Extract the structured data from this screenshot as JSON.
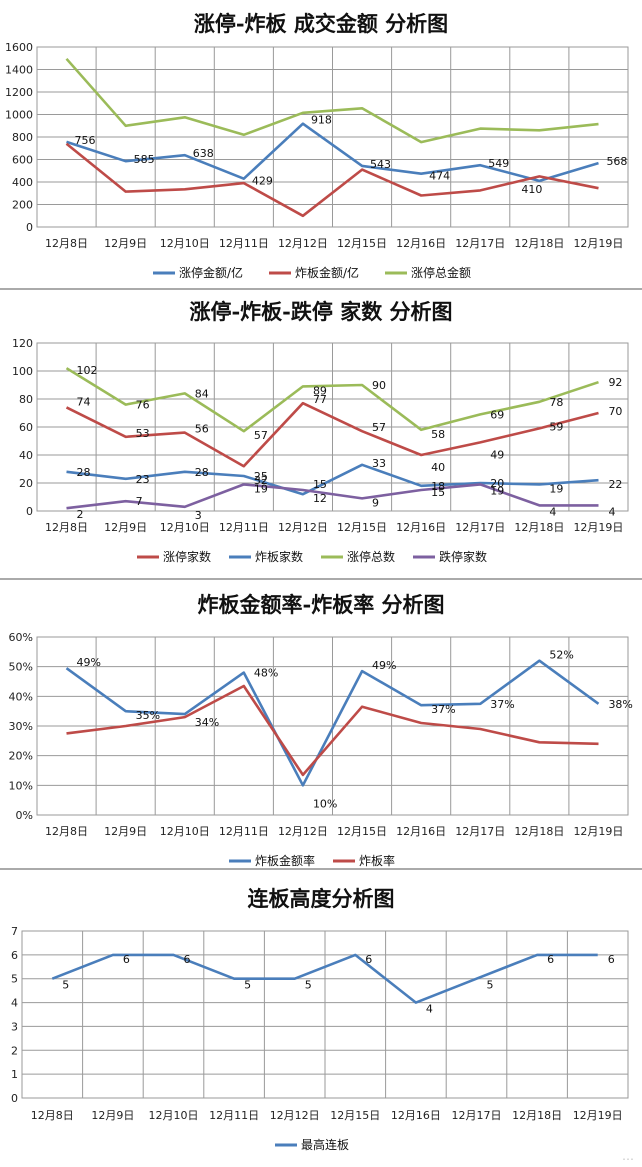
{
  "watermark": "…",
  "chart_data": [
    {
      "type": "line",
      "title": "涨停-炸板 成交金额 分析图",
      "categories": [
        "12月8日",
        "12月9日",
        "12月10日",
        "12月11日",
        "12月12日",
        "12月15日",
        "12月16日",
        "12月17日",
        "12月18日",
        "12月19日"
      ],
      "ylim": [
        0,
        1600
      ],
      "yticks": [
        0,
        200,
        400,
        600,
        800,
        1000,
        1200,
        1400,
        1600
      ],
      "ytick_labels": [
        "0",
        "200",
        "400",
        "600",
        "800",
        "1000",
        "1200",
        "1400",
        "1600"
      ],
      "grid": true,
      "legend": "bottom",
      "series": [
        {
          "name": "涨停金额/亿",
          "color": "#4a7ebb",
          "values": [
            756,
            585,
            638,
            429,
            918,
            543,
            474,
            549,
            410,
            568
          ],
          "labels": [
            "756",
            "585",
            "638",
            "429",
            "918",
            "543",
            "474",
            "549",
            "410",
            "568"
          ]
        },
        {
          "name": "炸板金额/亿",
          "color": "#be4b48",
          "values": [
            740,
            315,
            335,
            390,
            100,
            510,
            280,
            325,
            450,
            345
          ],
          "labels": []
        },
        {
          "name": "涨停总金额",
          "color": "#9bbb59",
          "values": [
            1495,
            900,
            975,
            820,
            1015,
            1055,
            755,
            875,
            860,
            915
          ],
          "labels": []
        }
      ]
    },
    {
      "type": "line",
      "title": "涨停-炸板-跌停 家数 分析图",
      "categories": [
        "12月8日",
        "12月9日",
        "12月10日",
        "12月11日",
        "12月12日",
        "12月15日",
        "12月16日",
        "12月17日",
        "12月18日",
        "12月19日"
      ],
      "ylim": [
        0,
        120
      ],
      "yticks": [
        0,
        20,
        40,
        60,
        80,
        100,
        120
      ],
      "ytick_labels": [
        "0",
        "20",
        "40",
        "60",
        "80",
        "100",
        "120"
      ],
      "grid": true,
      "legend": "bottom",
      "series": [
        {
          "name": "涨停家数",
          "color": "#be4b48",
          "values": [
            74,
            53,
            56,
            32,
            77,
            57,
            40,
            49,
            59,
            70
          ],
          "labels": [
            "74",
            "53",
            "56",
            "32",
            "77",
            "57",
            "40",
            "49",
            "59",
            "70"
          ]
        },
        {
          "name": "炸板家数",
          "color": "#4a7ebb",
          "values": [
            28,
            23,
            28,
            25,
            12,
            33,
            18,
            20,
            19,
            22
          ],
          "labels": [
            "28",
            "23",
            "28",
            "25",
            "12",
            "33",
            "18",
            "20",
            "19",
            "22"
          ]
        },
        {
          "name": "涨停总数",
          "color": "#9bbb59",
          "values": [
            102,
            76,
            84,
            57,
            89,
            90,
            58,
            69,
            78,
            92
          ],
          "labels": [
            "102",
            "76",
            "84",
            "57",
            "89",
            "90",
            "58",
            "69",
            "78",
            "92"
          ]
        },
        {
          "name": "跌停家数",
          "color": "#7d60a0",
          "values": [
            2,
            7,
            3,
            19,
            15,
            9,
            15,
            19,
            4,
            4
          ],
          "labels": [
            "2",
            "7",
            "3",
            "19",
            "15",
            "9",
            "15",
            "19",
            "4",
            "4"
          ]
        }
      ]
    },
    {
      "type": "line",
      "title": "炸板金额率-炸板率 分析图",
      "categories": [
        "12月8日",
        "12月9日",
        "12月10日",
        "12月11日",
        "12月12日",
        "12月15日",
        "12月16日",
        "12月17日",
        "12月18日",
        "12月19日"
      ],
      "ylim": [
        0,
        60
      ],
      "yticks": [
        0,
        10,
        20,
        30,
        40,
        50,
        60
      ],
      "ytick_labels": [
        "0%",
        "10%",
        "20%",
        "30%",
        "40%",
        "50%",
        "60%"
      ],
      "grid": true,
      "legend": "bottom",
      "series": [
        {
          "name": "炸板金额率",
          "color": "#4a7ebb",
          "values": [
            49.5,
            35,
            34,
            48,
            10,
            48.5,
            37,
            37.5,
            52,
            37.5
          ],
          "labels": [
            "49%",
            "35%",
            "34%",
            "48%",
            "10%",
            "49%",
            "37%",
            "37%",
            "52%",
            "38%"
          ]
        },
        {
          "name": "炸板率",
          "color": "#be4b48",
          "values": [
            27.5,
            30,
            33,
            43.5,
            13.5,
            36.5,
            31,
            29,
            24.5,
            24
          ],
          "labels": []
        }
      ]
    },
    {
      "type": "line",
      "title": "连板高度分析图",
      "categories": [
        "12月8日",
        "12月9日",
        "12月10日",
        "12月11日",
        "12月12日",
        "12月15日",
        "12月16日",
        "12月17日",
        "12月18日",
        "12月19日"
      ],
      "ylim": [
        0,
        7
      ],
      "yticks": [
        0,
        1,
        2,
        3,
        4,
        5,
        6,
        7
      ],
      "ytick_labels": [
        "0",
        "1",
        "2",
        "3",
        "4",
        "5",
        "6",
        "7"
      ],
      "grid": true,
      "legend": "bottom",
      "series": [
        {
          "name": "最高连板",
          "color": "#4a7ebb",
          "values": [
            5,
            6,
            6,
            5,
            5,
            6,
            4,
            5,
            6,
            6
          ],
          "labels": [
            "5",
            "6",
            "6",
            "5",
            "5",
            "6",
            "4",
            "5",
            "6",
            "6"
          ]
        }
      ]
    }
  ]
}
